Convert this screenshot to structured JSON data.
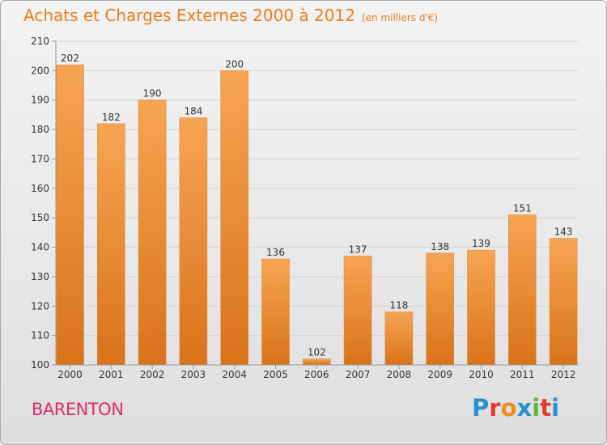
{
  "header": {
    "title": "Achats et Charges Externes 2000 à 2012",
    "subtitle": "(en milliers d'€)"
  },
  "footer": {
    "commune": "BARENTON",
    "logo_text": "Proxiti",
    "logo_colors": [
      "#2a8fd6",
      "#e23a2d",
      "#f08a1c",
      "#2a8fd6",
      "#69b534",
      "#e23a2d",
      "#2a8fd6"
    ]
  },
  "colors": {
    "accent": "#f07a1c",
    "commune": "#e0296e",
    "bar_top": "#f7a553",
    "bar_bottom": "#d9731a",
    "grid": "#d3d3d3",
    "axis_text": "#333333"
  },
  "chart_data": {
    "type": "bar",
    "title": "Achats et Charges Externes 2000 à 2012",
    "subtitle": "(en milliers d'€)",
    "categories": [
      "2000",
      "2001",
      "2002",
      "2003",
      "2004",
      "2005",
      "2006",
      "2007",
      "2008",
      "2009",
      "2010",
      "2011",
      "2012"
    ],
    "values": [
      202,
      182,
      190,
      184,
      200,
      136,
      102,
      137,
      118,
      138,
      139,
      151,
      143
    ],
    "ylim": [
      100,
      210
    ],
    "yticks": [
      100,
      110,
      120,
      130,
      140,
      150,
      160,
      170,
      180,
      190,
      200,
      210
    ],
    "grid": true,
    "data_labels": true
  }
}
